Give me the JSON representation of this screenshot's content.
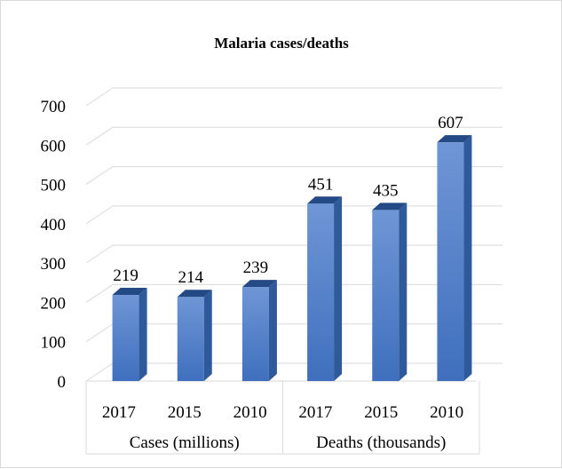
{
  "chart_data": {
    "type": "bar",
    "title": "Malaria cases/deaths",
    "categories": [
      {
        "label": "2017",
        "group": "Cases (millions)"
      },
      {
        "label": "2015",
        "group": "Cases (millions)"
      },
      {
        "label": "2010",
        "group": "Cases (millions)"
      },
      {
        "label": "2017",
        "group": "Deaths (thousands)"
      },
      {
        "label": "2015",
        "group": "Deaths (thousands)"
      },
      {
        "label": "2010",
        "group": "Deaths (thousands)"
      }
    ],
    "groups": [
      "Cases (millions)",
      "Deaths (thousands)"
    ],
    "values": [
      219,
      214,
      239,
      451,
      435,
      607
    ],
    "ylim": [
      0,
      700
    ],
    "yticks": [
      0,
      100,
      200,
      300,
      400,
      500,
      600,
      700
    ],
    "grid": true,
    "legend": "none",
    "three_d": true,
    "colors": {
      "bar_front_top": "#6f96d6",
      "bar_front_bottom": "#3f6fbd",
      "bar_side": "#2e5a9c",
      "bar_top": "#244a85",
      "grid": "#d9d9d9",
      "text": "#000000"
    }
  }
}
